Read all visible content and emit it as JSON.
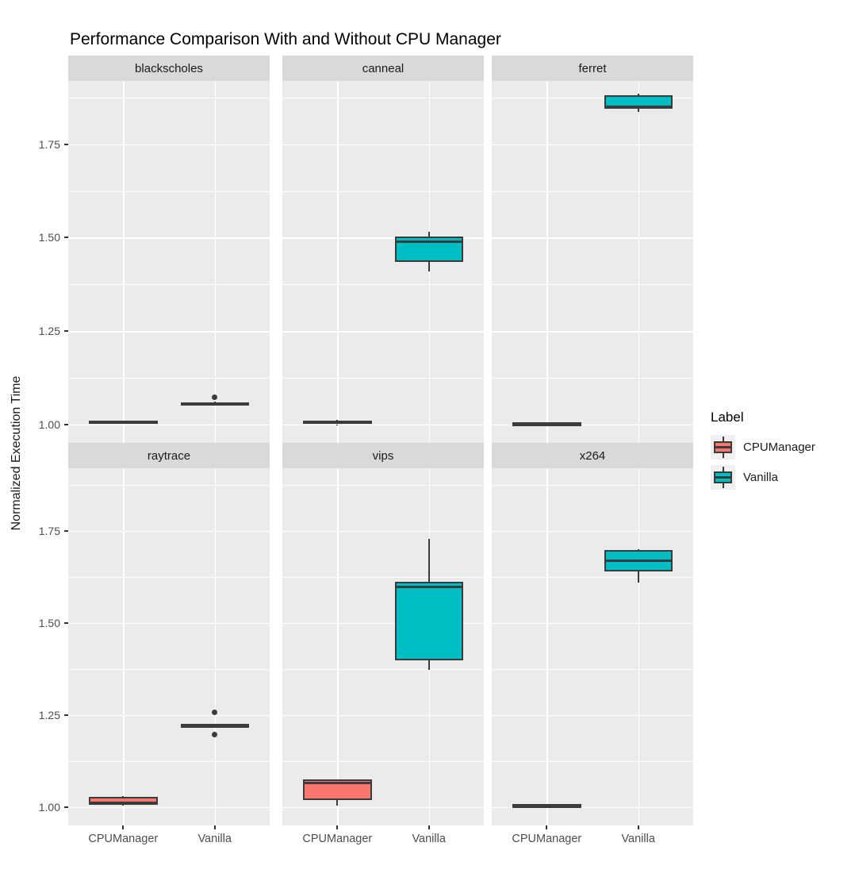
{
  "title": "Performance Comparison With and Without CPU Manager",
  "chart_data": {
    "type": "boxplot",
    "title": "Performance Comparison With and Without CPU Manager",
    "xlabel": "",
    "ylabel": "Normalized Execution Time",
    "categories": [
      "CPUManager",
      "Vanilla"
    ],
    "ylim": [
      0.95,
      1.92
    ],
    "yticks": [
      1.0,
      1.25,
      1.5,
      1.75
    ],
    "ytick_labels": [
      "1.00",
      "1.25",
      "1.50",
      "1.75"
    ],
    "minor_gridlines": [
      1.125,
      1.375,
      1.625,
      1.875
    ],
    "grid": true,
    "legend_position": "right",
    "facet_grid": {
      "rows": 2,
      "cols": 3
    },
    "facets": [
      {
        "label": "blackscholes",
        "boxes": [
          {
            "group": "CPUManager",
            "min": 1.004,
            "q1": 1.005,
            "median": 1.007,
            "q3": 1.009,
            "max": 1.01,
            "outliers": []
          },
          {
            "group": "Vanilla",
            "min": 1.053,
            "q1": 1.054,
            "median": 1.056,
            "q3": 1.059,
            "max": 1.06,
            "outliers": [
              1.073
            ]
          }
        ]
      },
      {
        "label": "canneal",
        "boxes": [
          {
            "group": "CPUManager",
            "min": 0.999,
            "q1": 1.0,
            "median": 1.005,
            "q3": 1.01,
            "max": 1.012,
            "outliers": []
          },
          {
            "group": "Vanilla",
            "min": 1.41,
            "q1": 1.435,
            "median": 1.49,
            "q3": 1.503,
            "max": 1.515,
            "outliers": []
          }
        ]
      },
      {
        "label": "ferret",
        "boxes": [
          {
            "group": "CPUManager",
            "min": 0.999,
            "q1": 1.0,
            "median": 1.002,
            "q3": 1.004,
            "max": 1.005,
            "outliers": []
          },
          {
            "group": "Vanilla",
            "min": 1.838,
            "q1": 1.845,
            "median": 1.851,
            "q3": 1.882,
            "max": 1.886,
            "outliers": []
          }
        ]
      },
      {
        "label": "raytrace",
        "boxes": [
          {
            "group": "CPUManager",
            "min": 1.004,
            "q1": 1.006,
            "median": 1.012,
            "q3": 1.028,
            "max": 1.03,
            "outliers": []
          },
          {
            "group": "Vanilla",
            "min": 1.22,
            "q1": 1.221,
            "median": 1.222,
            "q3": 1.223,
            "max": 1.224,
            "outliers": [
              1.258,
              1.196
            ]
          }
        ]
      },
      {
        "label": "vips",
        "boxes": [
          {
            "group": "CPUManager",
            "min": 1.004,
            "q1": 1.02,
            "median": 1.066,
            "q3": 1.075,
            "max": 1.076,
            "outliers": []
          },
          {
            "group": "Vanilla",
            "min": 1.372,
            "q1": 1.398,
            "median": 1.598,
            "q3": 1.612,
            "max": 1.729,
            "outliers": []
          }
        ]
      },
      {
        "label": "x264",
        "boxes": [
          {
            "group": "CPUManager",
            "min": 1.002,
            "q1": 1.003,
            "median": 1.005,
            "q3": 1.007,
            "max": 1.008,
            "outliers": []
          },
          {
            "group": "Vanilla",
            "min": 1.61,
            "q1": 1.64,
            "median": 1.668,
            "q3": 1.698,
            "max": 1.701,
            "outliers": []
          }
        ]
      }
    ]
  },
  "legend": {
    "title": "Label",
    "entries": [
      {
        "label": "CPUManager",
        "color": "#F8766D"
      },
      {
        "label": "Vanilla",
        "color": "#00BFC4"
      }
    ]
  },
  "colors": {
    "cpumanager_fill": "#F8766D",
    "vanilla_fill": "#00BFC4",
    "box_border": "#3B3B3B",
    "panel_background": "#EBEBEB",
    "strip_background": "#D9D9D9",
    "gridline": "#FFFFFF",
    "tick_text": "#4D4D4D",
    "title_text": "#000000"
  }
}
